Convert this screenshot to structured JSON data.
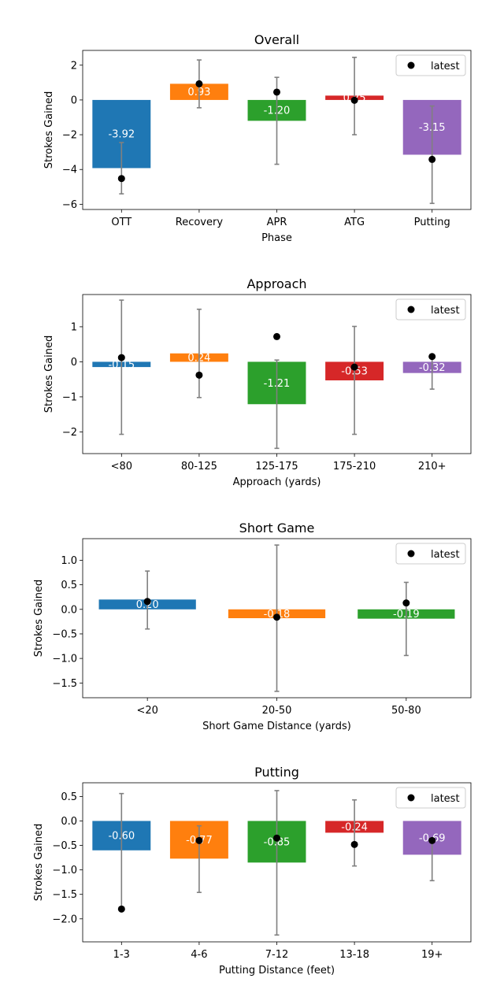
{
  "chart_data": [
    {
      "type": "bar",
      "title": "Overall",
      "xlabel": "Phase",
      "ylabel": "Strokes Gained",
      "categories": [
        "OTT",
        "Recovery",
        "APR",
        "ATG",
        "Putting"
      ],
      "values": [
        -3.92,
        0.93,
        -1.2,
        0.25,
        -3.15
      ],
      "value_labels": [
        "-3.92",
        "0.93",
        "-1.20",
        "0.25",
        "-3.15"
      ],
      "error_low": [
        -5.4,
        -0.45,
        -3.7,
        -2.0,
        -5.95
      ],
      "error_high": [
        -2.45,
        2.3,
        1.3,
        2.45,
        -0.35
      ],
      "latest": [
        -4.52,
        0.93,
        0.45,
        -0.02,
        -3.42
      ],
      "legend": "latest",
      "legend_position": "upper right",
      "ylim": [
        -6.3,
        2.85
      ],
      "yticks": [
        -6,
        -4,
        -2,
        0,
        2
      ],
      "ytick_labels": [
        "−6",
        "−4",
        "−2",
        "0",
        "2"
      ]
    },
    {
      "type": "bar",
      "title": "Approach",
      "xlabel": "Approach (yards)",
      "ylabel": "Strokes Gained",
      "categories": [
        "<80",
        "80-125",
        "125-175",
        "175-210",
        "210+"
      ],
      "values": [
        -0.15,
        0.24,
        -1.21,
        -0.53,
        -0.32
      ],
      "value_labels": [
        "-0.15",
        "0.24",
        "-1.21",
        "-0.53",
        "-0.32"
      ],
      "error_low": [
        -2.07,
        -1.02,
        -2.47,
        -2.07,
        -0.78
      ],
      "error_high": [
        1.76,
        1.5,
        0.05,
        1.01,
        0.15
      ],
      "latest": [
        0.12,
        -0.38,
        0.72,
        -0.15,
        0.15
      ],
      "legend": "latest",
      "legend_position": "upper right",
      "ylim": [
        -2.62,
        1.92
      ],
      "yticks": [
        -2,
        -1,
        0,
        1
      ],
      "ytick_labels": [
        "−2",
        "−1",
        "0",
        "1"
      ]
    },
    {
      "type": "bar",
      "title": "Short Game",
      "xlabel": "Short Game Distance (yards)",
      "ylabel": "Strokes Gained",
      "categories": [
        "<20",
        "20-50",
        "50-80"
      ],
      "values": [
        0.2,
        -0.18,
        -0.19
      ],
      "value_labels": [
        "0.20",
        "-0.18",
        "-0.19"
      ],
      "error_low": [
        -0.4,
        -1.67,
        -0.94
      ],
      "error_high": [
        0.78,
        1.31,
        0.55
      ],
      "latest": [
        0.16,
        -0.16,
        0.13
      ],
      "legend": "latest",
      "legend_position": "upper right",
      "ylim": [
        -1.8,
        1.44
      ],
      "yticks": [
        -1.5,
        -1.0,
        -0.5,
        0.0,
        0.5,
        1.0
      ],
      "ytick_labels": [
        "−1.5",
        "−1.0",
        "−0.5",
        "0.0",
        "0.5",
        "1.0"
      ]
    },
    {
      "type": "bar",
      "title": "Putting",
      "xlabel": "Putting Distance (feet)",
      "ylabel": "Strokes Gained",
      "categories": [
        "1-3",
        "4-6",
        "7-12",
        "13-18",
        "19+"
      ],
      "values": [
        -0.6,
        -0.77,
        -0.85,
        -0.24,
        -0.69
      ],
      "value_labels": [
        "-0.60",
        "-0.77",
        "-0.85",
        "-0.24",
        "-0.69"
      ],
      "error_low": [
        -1.78,
        -1.46,
        -2.33,
        -0.92,
        -1.22
      ],
      "error_high": [
        0.56,
        -0.1,
        0.62,
        0.43,
        -0.38
      ],
      "latest": [
        -1.8,
        -0.4,
        -0.35,
        -0.48,
        -0.4
      ],
      "legend": "latest",
      "legend_position": "upper right",
      "ylim": [
        -2.47,
        0.78
      ],
      "yticks": [
        -2.0,
        -1.5,
        -1.0,
        -0.5,
        0.0,
        0.5
      ],
      "ytick_labels": [
        "−2.0",
        "−1.5",
        "−1.0",
        "−0.5",
        "0.0",
        "0.5"
      ]
    }
  ],
  "colors": {
    "palette": [
      "#1f77b4",
      "#ff7f0e",
      "#2ca02c",
      "#d62728",
      "#9467bd"
    ],
    "errorbar": "#808080",
    "marker": "#000000",
    "value_label": "#ffffff"
  }
}
